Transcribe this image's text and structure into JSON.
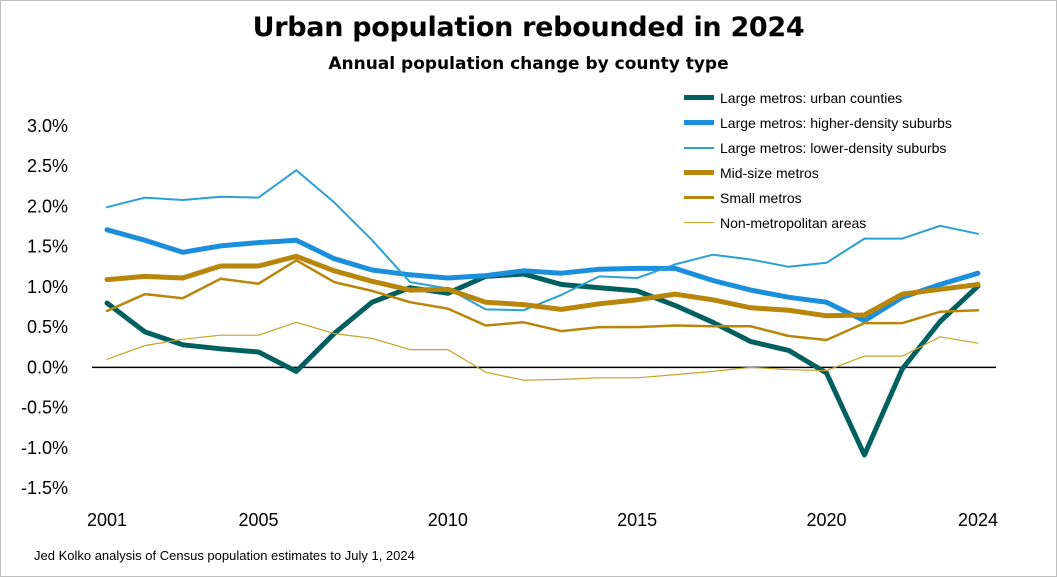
{
  "title": "Urban population rebounded in 2024",
  "subtitle": "Annual population change by county type",
  "source": "Jed Kolko analysis of Census population estimates to July 1, 2024",
  "chart_data": {
    "type": "line",
    "title": "Urban population rebounded in 2024",
    "subtitle": "Annual population change by county type",
    "x": [
      2001,
      2002,
      2003,
      2004,
      2005,
      2006,
      2007,
      2008,
      2009,
      2010,
      2011,
      2012,
      2013,
      2014,
      2015,
      2016,
      2017,
      2018,
      2019,
      2020,
      2021,
      2022,
      2023,
      2024
    ],
    "x_ticks": [
      "2001",
      "2005",
      "2010",
      "2015",
      "2020",
      "2024"
    ],
    "y_ticks": [
      "3.0%",
      "2.5%",
      "2.0%",
      "1.5%",
      "1.0%",
      "0.5%",
      "0.0%",
      "-0.5%",
      "-1.0%",
      "-1.5%"
    ],
    "ylim": [
      -1.5,
      3.0
    ],
    "y_unit": "%",
    "legend_position": "top-right",
    "zero_line": true,
    "series": [
      {
        "name": "Large metros: urban counties",
        "color": "#005f5f",
        "width": 5,
        "values": [
          0.8,
          0.44,
          0.28,
          0.23,
          0.19,
          -0.05,
          0.42,
          0.81,
          0.99,
          0.92,
          1.13,
          1.16,
          1.03,
          0.99,
          0.95,
          0.77,
          0.56,
          0.32,
          0.21,
          -0.07,
          -1.09,
          -0.02,
          0.57,
          1.01
        ]
      },
      {
        "name": "Large metros: higher-density suburbs",
        "color": "#1b8fdc",
        "width": 5,
        "values": [
          1.71,
          1.58,
          1.43,
          1.51,
          1.55,
          1.58,
          1.35,
          1.21,
          1.15,
          1.11,
          1.14,
          1.2,
          1.17,
          1.22,
          1.23,
          1.23,
          1.08,
          0.96,
          0.87,
          0.81,
          0.58,
          0.87,
          1.03,
          1.17
        ]
      },
      {
        "name": "Large metros: lower-density suburbs",
        "color": "#2aa0d4",
        "width": 2,
        "values": [
          1.99,
          2.11,
          2.08,
          2.12,
          2.11,
          2.45,
          2.05,
          1.58,
          1.06,
          0.98,
          0.72,
          0.71,
          0.9,
          1.13,
          1.11,
          1.28,
          1.4,
          1.34,
          1.25,
          1.3,
          1.6,
          1.6,
          1.76,
          1.66
        ]
      },
      {
        "name": "Mid-size metros",
        "color": "#b8860b",
        "width": 5,
        "values": [
          1.09,
          1.13,
          1.11,
          1.26,
          1.26,
          1.38,
          1.2,
          1.07,
          0.96,
          0.97,
          0.81,
          0.78,
          0.72,
          0.79,
          0.84,
          0.91,
          0.84,
          0.74,
          0.71,
          0.64,
          0.65,
          0.91,
          0.97,
          1.03
        ]
      },
      {
        "name": "Small metros",
        "color": "#b8860b",
        "width": 2.5,
        "values": [
          0.7,
          0.91,
          0.86,
          1.1,
          1.04,
          1.33,
          1.06,
          0.95,
          0.81,
          0.73,
          0.52,
          0.56,
          0.45,
          0.5,
          0.5,
          0.52,
          0.51,
          0.51,
          0.39,
          0.34,
          0.55,
          0.55,
          0.69,
          0.71
        ]
      },
      {
        "name": "Non-metropolitan areas",
        "color": "#c9a227",
        "width": 1.2,
        "values": [
          0.1,
          0.27,
          0.35,
          0.4,
          0.4,
          0.56,
          0.42,
          0.36,
          0.22,
          0.22,
          -0.06,
          -0.16,
          -0.15,
          -0.13,
          -0.13,
          -0.09,
          -0.05,
          0.0,
          -0.03,
          -0.04,
          0.14,
          0.14,
          0.38,
          0.3
        ]
      }
    ]
  }
}
